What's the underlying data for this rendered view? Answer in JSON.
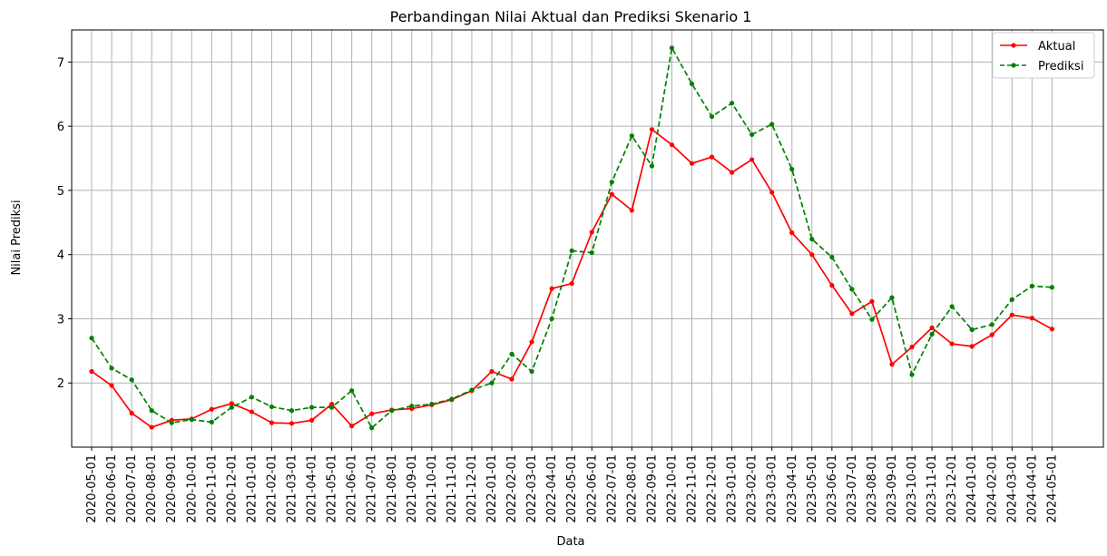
{
  "chart_data": {
    "type": "line",
    "title": "Perbandingan Nilai Aktual dan Prediksi Skenario 1",
    "xlabel": "Data",
    "ylabel": "Nilai Prediksi",
    "ylim": [
      1.0,
      7.5
    ],
    "yticks": [
      2,
      3,
      4,
      5,
      6,
      7
    ],
    "grid": true,
    "legend_position": "top-right",
    "categories": [
      "2020-05-01",
      "2020-06-01",
      "2020-07-01",
      "2020-08-01",
      "2020-09-01",
      "2020-10-01",
      "2020-11-01",
      "2020-12-01",
      "2021-01-01",
      "2021-02-01",
      "2021-03-01",
      "2021-04-01",
      "2021-05-01",
      "2021-06-01",
      "2021-07-01",
      "2021-08-01",
      "2021-09-01",
      "2021-10-01",
      "2021-11-01",
      "2021-12-01",
      "2022-01-01",
      "2022-02-01",
      "2022-03-01",
      "2022-04-01",
      "2022-05-01",
      "2022-06-01",
      "2022-07-01",
      "2022-08-01",
      "2022-09-01",
      "2022-10-01",
      "2022-11-01",
      "2022-12-01",
      "2023-01-01",
      "2023-02-01",
      "2023-03-01",
      "2023-04-01",
      "2023-05-01",
      "2023-06-01",
      "2023-07-01",
      "2023-08-01",
      "2023-09-01",
      "2023-10-01",
      "2023-11-01",
      "2023-12-01",
      "2024-01-01",
      "2024-02-01",
      "2024-03-01",
      "2024-04-01",
      "2024-05-01"
    ],
    "series": [
      {
        "name": "Aktual",
        "color": "#ff0000",
        "style": "solid",
        "values": [
          2.18,
          1.96,
          1.53,
          1.31,
          1.42,
          1.44,
          1.59,
          1.68,
          1.55,
          1.38,
          1.37,
          1.42,
          1.67,
          1.33,
          1.52,
          1.58,
          1.6,
          1.66,
          1.74,
          1.88,
          2.18,
          2.06,
          2.64,
          3.47,
          3.55,
          4.35,
          4.94,
          4.69,
          5.95,
          5.71,
          5.42,
          5.52,
          5.28,
          5.48,
          4.97,
          4.34,
          4.0,
          3.52,
          3.08,
          3.27,
          2.29,
          2.56,
          2.86,
          2.61,
          2.57,
          2.75,
          3.06,
          3.01,
          2.84
        ]
      },
      {
        "name": "Prediksi",
        "color": "#008000",
        "style": "dashed",
        "values": [
          2.7,
          2.23,
          2.05,
          1.57,
          1.38,
          1.43,
          1.39,
          1.62,
          1.78,
          1.63,
          1.57,
          1.62,
          1.62,
          1.88,
          1.3,
          1.57,
          1.64,
          1.67,
          1.75,
          1.89,
          2.0,
          2.45,
          2.18,
          3.0,
          4.06,
          4.03,
          5.13,
          5.85,
          5.38,
          7.22,
          6.66,
          6.15,
          6.36,
          5.87,
          6.03,
          5.33,
          4.24,
          3.96,
          3.46,
          2.99,
          3.33,
          2.13,
          2.76,
          3.19,
          2.83,
          2.91,
          3.3,
          3.51,
          3.49
        ]
      }
    ]
  }
}
